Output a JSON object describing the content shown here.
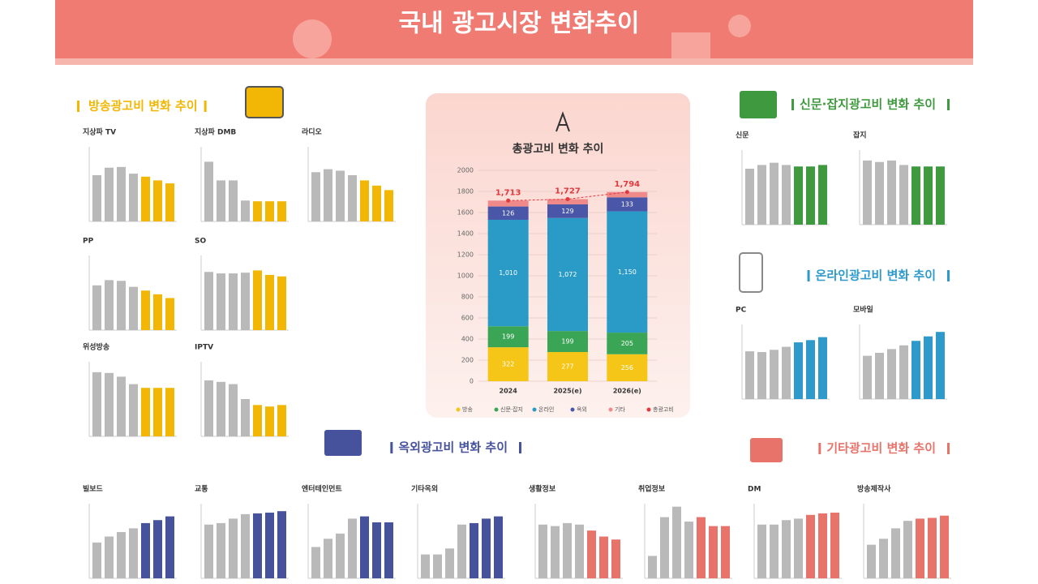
{
  "header": {
    "title": "국내 광고시장 변화추이"
  },
  "base_color": "#b9b9b9",
  "small_ylim": [
    0,
    100
  ],
  "sections": [
    {
      "title": "방송광고비 변화 추이",
      "color": "#f2b705",
      "charts": [
        {
          "name": "지상파 TV",
          "values": [
            62,
            72,
            73,
            64,
            60,
            55,
            51
          ],
          "highlight_from": 4
        },
        {
          "name": "지상파 DMB",
          "values": [
            80,
            55,
            55,
            28,
            27,
            27,
            27
          ],
          "highlight_from": 4
        },
        {
          "name": "라디오",
          "values": [
            66,
            70,
            68,
            62,
            55,
            48,
            42
          ],
          "highlight_from": 4
        },
        {
          "name": "PP",
          "values": [
            60,
            67,
            66,
            58,
            53,
            48,
            43
          ],
          "highlight_from": 4
        },
        {
          "name": "SO",
          "values": [
            78,
            76,
            76,
            77,
            80,
            74,
            72
          ],
          "highlight_from": 4
        },
        {
          "name": "위성방송",
          "values": [
            86,
            85,
            80,
            70,
            65,
            65,
            65
          ],
          "highlight_from": 4
        },
        {
          "name": "IPTV",
          "values": [
            75,
            73,
            70,
            50,
            42,
            40,
            42
          ],
          "highlight_from": 4
        }
      ]
    },
    {
      "title": "신문·잡지광고비 변화 추이",
      "color": "#3f9a3f",
      "charts": [
        {
          "name": "신문",
          "values": [
            75,
            80,
            83,
            80,
            78,
            78,
            80
          ],
          "highlight_from": 4
        },
        {
          "name": "잡지",
          "values": [
            86,
            84,
            86,
            80,
            78,
            78,
            78
          ],
          "highlight_from": 4
        }
      ]
    },
    {
      "title": "온라인광고비 변화 추이",
      "color": "#2e9acb",
      "charts": [
        {
          "name": "PC",
          "values": [
            64,
            63,
            66,
            70,
            76,
            79,
            83
          ],
          "highlight_from": 4
        },
        {
          "name": "모바일",
          "values": [
            58,
            62,
            67,
            72,
            78,
            84,
            90
          ],
          "highlight_from": 4
        }
      ]
    },
    {
      "title": "옥외광고비 변화 추이",
      "color": "#46529c",
      "charts": [
        {
          "name": "빌보드",
          "values": [
            48,
            56,
            62,
            67,
            74,
            78,
            83
          ],
          "highlight_from": 4
        },
        {
          "name": "교통",
          "values": [
            72,
            74,
            80,
            86,
            87,
            88,
            90
          ],
          "highlight_from": 4
        },
        {
          "name": "엔터테인먼트",
          "values": [
            42,
            53,
            60,
            80,
            83,
            75,
            75
          ],
          "highlight_from": 4
        },
        {
          "name": "기타옥외",
          "values": [
            32,
            32,
            40,
            72,
            74,
            80,
            83
          ],
          "highlight_from": 4
        }
      ]
    },
    {
      "title": "기타광고비 변화 추이",
      "color": "#e8736b",
      "charts": [
        {
          "name": "생활정보",
          "values": [
            72,
            70,
            74,
            72,
            64,
            56,
            52
          ],
          "highlight_from": 4
        },
        {
          "name": "취업정보",
          "values": [
            30,
            82,
            96,
            76,
            82,
            70,
            70
          ],
          "highlight_from": 4
        },
        {
          "name": "DM",
          "values": [
            72,
            72,
            78,
            80,
            85,
            87,
            88
          ],
          "highlight_from": 4
        },
        {
          "name": "방송제작사",
          "values": [
            45,
            53,
            67,
            77,
            80,
            81,
            84
          ],
          "highlight_from": 4
        }
      ]
    }
  ],
  "chart_data": {
    "type": "stacked-bar",
    "title": "총광고비 변화 추이",
    "categories": [
      "2024",
      "2025(e)",
      "2026(e)"
    ],
    "ylim": [
      0,
      2000
    ],
    "yticks": [
      0,
      200,
      400,
      600,
      800,
      1000,
      1200,
      1400,
      1600,
      1800,
      2000
    ],
    "grid": true,
    "series": [
      {
        "name": "방송",
        "color": "#f5c518",
        "values": [
          322,
          277,
          256
        ]
      },
      {
        "name": "신문·잡지",
        "color": "#3aa655",
        "values": [
          199,
          199,
          205
        ]
      },
      {
        "name": "온라인",
        "color": "#2a9bc6",
        "values": [
          1010,
          1072,
          1150
        ],
        "value_labels": [
          "1,010",
          "1,072",
          "1,150"
        ]
      },
      {
        "name": "옥외",
        "color": "#4a57a8",
        "values": [
          126,
          129,
          133
        ]
      },
      {
        "name": "기타",
        "color": "#f08a8a",
        "values": [
          56,
          50,
          50
        ]
      }
    ],
    "total": {
      "name": "총광고비",
      "color": "#e0393e",
      "values": [
        1713,
        1727,
        1794
      ],
      "value_labels": [
        "1,713",
        "1,727",
        "1,794"
      ]
    }
  }
}
